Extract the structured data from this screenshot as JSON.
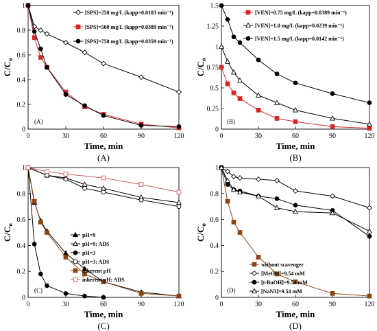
{
  "chart_data": [
    {
      "type": "line",
      "label": "(A)",
      "tag": "(A)",
      "xlabel": "Time, min",
      "ylabel": "C/Co",
      "xlim": [
        0,
        120
      ],
      "ylim": [
        0,
        1
      ],
      "xticks": [
        0,
        30,
        60,
        90,
        120
      ],
      "yticks": [
        0,
        0.2,
        0.4,
        0.6,
        0.8,
        1
      ],
      "legend_position": "top-right",
      "series": [
        {
          "name": "[SPS]=250 mg/L (kapp=0.0103 min⁻¹)",
          "marker": "diamond",
          "fill": "#ffffff",
          "line": "#000000",
          "x": [
            0,
            5,
            10,
            15,
            30,
            45,
            60,
            90,
            120
          ],
          "y": [
            1.0,
            0.83,
            0.8,
            0.77,
            0.7,
            0.62,
            0.53,
            0.42,
            0.3
          ]
        },
        {
          "name": "[SPS]=500 mg/L (kapp=0.0389 min⁻¹)",
          "marker": "square",
          "fill": "#d62728",
          "line": "#d62728",
          "x": [
            0,
            5,
            10,
            15,
            30,
            45,
            60,
            90,
            120
          ],
          "y": [
            1.0,
            0.74,
            0.58,
            0.5,
            0.3,
            0.18,
            0.12,
            0.04,
            0.01
          ]
        },
        {
          "name": "[SPS]=750 mg/L (kapp=0.0359 min⁻¹)",
          "marker": "circle",
          "fill": "#000000",
          "line": "#000000",
          "x": [
            0,
            5,
            10,
            15,
            30,
            45,
            60,
            90,
            120
          ],
          "y": [
            1.0,
            0.79,
            0.65,
            0.5,
            0.28,
            0.19,
            0.11,
            0.03,
            0.02
          ]
        }
      ]
    },
    {
      "type": "line",
      "label": "(B)",
      "tag": "(B)",
      "xlabel": "Time, min",
      "ylabel": "C/Co",
      "xlim": [
        0,
        120
      ],
      "ylim": [
        0,
        1.5
      ],
      "xticks": [
        0,
        30,
        60,
        90,
        120
      ],
      "yticks": [
        0,
        0.25,
        0.5,
        0.75,
        1,
        1.25,
        1.5
      ],
      "legend_position": "top-right",
      "series": [
        {
          "name": "[VEN]=0.75 mg/L (kapp=0.0389 min⁻¹)",
          "marker": "square",
          "fill": "#d62728",
          "line": "#d62728",
          "x": [
            0,
            5,
            10,
            15,
            30,
            45,
            60,
            90,
            120
          ],
          "y": [
            0.75,
            0.55,
            0.44,
            0.37,
            0.23,
            0.13,
            0.09,
            0.03,
            0.01
          ]
        },
        {
          "name": "[VEN]=1.0 mg/L (kapp=0.0239 min⁻¹)",
          "marker": "triangle",
          "fill": "#ffffff",
          "line": "#000000",
          "x": [
            0,
            5,
            10,
            15,
            30,
            45,
            60,
            90,
            120
          ],
          "y": [
            1.0,
            0.82,
            0.69,
            0.59,
            0.41,
            0.32,
            0.23,
            0.13,
            0.06
          ]
        },
        {
          "name": "[VEN]=1.5 mg/L (kapp=0.0142 min⁻¹)",
          "marker": "circle",
          "fill": "#000000",
          "line": "#000000",
          "x": [
            0,
            5,
            10,
            15,
            30,
            45,
            60,
            90,
            120
          ],
          "y": [
            1.5,
            1.33,
            1.12,
            1.05,
            0.84,
            0.67,
            0.56,
            0.43,
            0.32
          ]
        }
      ]
    },
    {
      "type": "line",
      "label": "(C)",
      "tag": "(C)",
      "xlabel": "Time, min",
      "ylabel": "C/Co",
      "xlim": [
        0,
        120
      ],
      "ylim": [
        0,
        1
      ],
      "xticks": [
        0,
        30,
        60,
        90,
        120
      ],
      "yticks": [
        0,
        0.2,
        0.4,
        0.6,
        0.8,
        1
      ],
      "legend_position": "center-right",
      "series": [
        {
          "name": "pH=9",
          "marker": "triangle",
          "fill": "#000000",
          "line": "#000000",
          "x": [
            0,
            5,
            10,
            15,
            30,
            45,
            60,
            90,
            120
          ],
          "y": [
            1.0,
            0.73,
            0.59,
            0.51,
            0.34,
            0.22,
            0.12,
            0.04,
            0.01
          ]
        },
        {
          "name": "pH=9: ADS",
          "marker": "triangle",
          "fill": "#ffffff",
          "line": "#000000",
          "x": [
            0,
            15,
            30,
            45,
            60,
            90,
            120
          ],
          "y": [
            1.0,
            0.94,
            0.92,
            0.87,
            0.84,
            0.77,
            0.73
          ]
        },
        {
          "name": "pH=3",
          "marker": "circle",
          "fill": "#000000",
          "line": "#000000",
          "x": [
            0,
            5,
            10,
            15,
            30,
            45,
            60
          ],
          "y": [
            1.0,
            0.41,
            0.18,
            0.09,
            0.03,
            0.01,
            0.0
          ]
        },
        {
          "name": "pH=3: ADS",
          "marker": "circle",
          "fill": "#ffffff",
          "line": "#000000",
          "x": [
            0,
            15,
            30,
            45,
            60,
            90,
            120
          ],
          "y": [
            1.0,
            0.94,
            0.91,
            0.84,
            0.81,
            0.75,
            0.7
          ]
        },
        {
          "name": "inherent pH",
          "marker": "square",
          "fill": "#8b4513",
          "line": "#8b4513",
          "x": [
            0,
            5,
            10,
            15,
            30,
            45,
            60,
            90,
            120
          ],
          "y": [
            1.0,
            0.74,
            0.58,
            0.5,
            0.31,
            0.18,
            0.12,
            0.03,
            0.01
          ]
        },
        {
          "name": "inherent pH: ADS",
          "marker": "square",
          "fill": "#ffffff",
          "line": "#cd5c5c",
          "x": [
            0,
            15,
            30,
            60,
            90,
            120
          ],
          "y": [
            1.0,
            0.97,
            0.95,
            0.92,
            0.87,
            0.81
          ]
        }
      ]
    },
    {
      "type": "line",
      "label": "(D)",
      "tag": "(D)",
      "xlabel": "Time, min",
      "ylabel": "C/Co",
      "xlim": [
        0,
        120
      ],
      "ylim": [
        0,
        1
      ],
      "xticks": [
        0,
        30,
        60,
        90,
        120
      ],
      "yticks": [
        0,
        0.2,
        0.4,
        0.6,
        0.8,
        1
      ],
      "legend_position": "bottom-right",
      "series": [
        {
          "name": "without scavenger",
          "marker": "square",
          "fill": "#8b4513",
          "line": "#8b4513",
          "x": [
            0,
            5,
            10,
            15,
            30,
            45,
            60,
            90,
            120
          ],
          "y": [
            1.0,
            0.74,
            0.58,
            0.5,
            0.31,
            0.18,
            0.12,
            0.03,
            0.01
          ]
        },
        {
          "name": "[MeOH]=9.54 mM",
          "marker": "diamond",
          "fill": "#ffffff",
          "line": "#000000",
          "x": [
            0,
            5,
            10,
            15,
            30,
            45,
            60,
            90,
            120
          ],
          "y": [
            1.0,
            0.97,
            0.93,
            0.92,
            0.91,
            0.9,
            0.82,
            0.78,
            0.69
          ]
        },
        {
          "name": "[t-BuOH]=9.54 mM",
          "marker": "circle",
          "fill": "#000000",
          "line": "#000000",
          "x": [
            0,
            5,
            10,
            15,
            30,
            45,
            60,
            90,
            120
          ],
          "y": [
            1.0,
            0.87,
            0.83,
            0.82,
            0.78,
            0.76,
            0.71,
            0.67,
            0.47
          ]
        },
        {
          "name": "[NaN3]=9.54 mM",
          "marker": "triangle",
          "fill": "#ffffff",
          "line": "#000000",
          "x": [
            0,
            5,
            10,
            15,
            30,
            45,
            60,
            90,
            120
          ],
          "y": [
            1.0,
            0.9,
            0.83,
            0.81,
            0.78,
            0.69,
            0.66,
            0.65,
            0.51
          ]
        }
      ]
    }
  ]
}
